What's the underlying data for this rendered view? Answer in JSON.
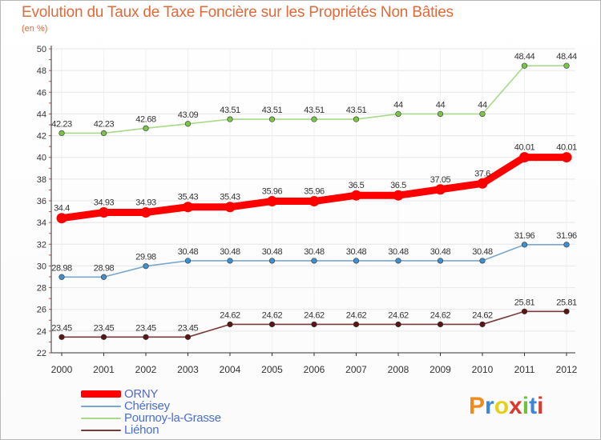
{
  "title": "Evolution du Taux de Taxe Foncière sur les Propriétés Non Bâties",
  "unit_label": "(en %)",
  "brand": {
    "letters": [
      "P",
      "r",
      "o",
      "x",
      "i",
      "t",
      "i"
    ],
    "colors": [
      "#f28a1a",
      "#3a86d8",
      "#e2d21a",
      "#d83a2c",
      "#6fc13a",
      "#3a86d8",
      "#d83a2c"
    ]
  },
  "chart_data": {
    "type": "line",
    "title": "Evolution du Taux de Taxe Foncière sur les Propriétés Non Bâties",
    "ylabel": "(en %)",
    "xlabel": "",
    "x": [
      "2000",
      "2001",
      "2002",
      "2003",
      "2004",
      "2005",
      "2006",
      "2007",
      "2008",
      "2009",
      "2010",
      "2011",
      "2012"
    ],
    "ylim": [
      22,
      50
    ],
    "yticks": [
      "22",
      "24",
      "26",
      "28",
      "30",
      "32",
      "34",
      "36",
      "38",
      "40",
      "42",
      "44",
      "46",
      "48",
      "50"
    ],
    "grid": true,
    "legend_position": "bottom-left",
    "series": [
      {
        "name": "ORNY",
        "color": "#ff0000",
        "emphasis": "thick",
        "values": [
          34.4,
          34.93,
          34.93,
          35.43,
          35.43,
          35.96,
          35.96,
          36.5,
          36.5,
          37.05,
          37.6,
          40.01,
          40.01
        ],
        "labels": [
          "34.4",
          "34.93",
          "34.93",
          "35.43",
          "35.43",
          "35.96",
          "35.96",
          "36.5",
          "36.5",
          "37.05",
          "37.6",
          "40.01",
          "40.01"
        ]
      },
      {
        "name": "Chérisey",
        "color": "#7aa7cf",
        "point_color": "#3f8fcf",
        "values": [
          28.98,
          28.98,
          29.98,
          30.48,
          30.48,
          30.48,
          30.48,
          30.48,
          30.48,
          30.48,
          30.48,
          31.96,
          31.96
        ],
        "labels": [
          "28.98",
          "28.98",
          "29.98",
          "30.48",
          "30.48",
          "30.48",
          "30.48",
          "30.48",
          "30.48",
          "30.48",
          "30.48",
          "31.96",
          "31.96"
        ]
      },
      {
        "name": "Pournoy-la-Grasse",
        "color": "#a8d98a",
        "point_color": "#7cc34a",
        "values": [
          42.23,
          42.23,
          42.68,
          43.09,
          43.51,
          43.51,
          43.51,
          43.51,
          44,
          44,
          44,
          48.44,
          48.44
        ],
        "labels": [
          "42.23",
          "42.23",
          "42.68",
          "43.09",
          "43.51",
          "43.51",
          "43.51",
          "43.51",
          "44",
          "44",
          "44",
          "48.44",
          "48.44"
        ]
      },
      {
        "name": "Liéhon",
        "color": "#7a3a3a",
        "point_color": "#5a1515",
        "values": [
          23.45,
          23.45,
          23.45,
          23.45,
          24.62,
          24.62,
          24.62,
          24.62,
          24.62,
          24.62,
          24.62,
          25.81,
          25.81
        ],
        "labels": [
          "23.45",
          "23.45",
          "23.45",
          "23.45",
          "24.62",
          "24.62",
          "24.62",
          "24.62",
          "24.62",
          "24.62",
          "24.62",
          "25.81",
          "25.81"
        ]
      }
    ]
  }
}
